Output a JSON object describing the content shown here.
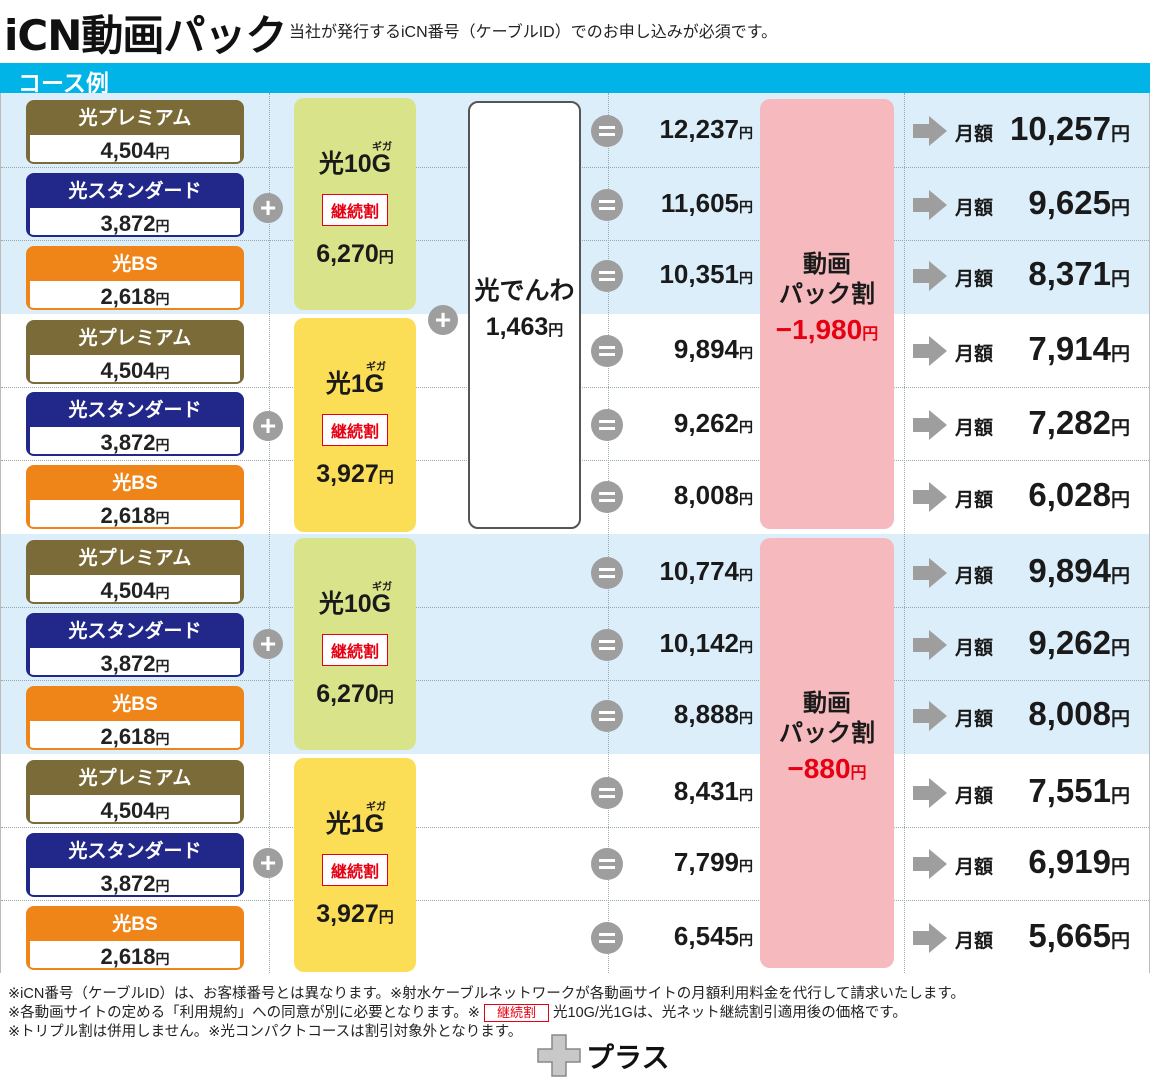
{
  "header": {
    "title": "iCN動画パック",
    "subtitle": "当社が発行するiCN番号（ケーブルID）でのお申し込みが必須です。"
  },
  "section_label": "コース例",
  "currency": "円",
  "services": {
    "premium": {
      "name": "光プレミアム",
      "price": "4,504"
    },
    "standard": {
      "name": "光スタンダード",
      "price": "3,872"
    },
    "bs": {
      "name": "光BS",
      "price": "2,618"
    }
  },
  "internet": {
    "g10": {
      "name": "光10G",
      "ruby": "ギガ",
      "badge": "継続割",
      "price": "6,270"
    },
    "g1": {
      "name": "光1G",
      "ruby": "ギガ",
      "badge": "継続割",
      "price": "3,927"
    }
  },
  "phone": {
    "name": "光でんわ",
    "price": "1,463"
  },
  "packs": [
    {
      "line1": "動画",
      "line2": "パック割",
      "discount": "−1,980"
    },
    {
      "line1": "動画",
      "line2": "パック割",
      "discount": "−880"
    }
  ],
  "monthly_label": "月額",
  "rows": [
    {
      "subtotal": "12,237",
      "monthly": "10,257"
    },
    {
      "subtotal": "11,605",
      "monthly": "9,625"
    },
    {
      "subtotal": "10,351",
      "monthly": "8,371"
    },
    {
      "subtotal": "9,894",
      "monthly": "7,914"
    },
    {
      "subtotal": "9,262",
      "monthly": "7,282"
    },
    {
      "subtotal": "8,008",
      "monthly": "6,028"
    },
    {
      "subtotal": "10,774",
      "monthly": "9,894"
    },
    {
      "subtotal": "10,142",
      "monthly": "9,262"
    },
    {
      "subtotal": "8,888",
      "monthly": "8,008"
    },
    {
      "subtotal": "8,431",
      "monthly": "7,551"
    },
    {
      "subtotal": "7,799",
      "monthly": "6,919"
    },
    {
      "subtotal": "6,545",
      "monthly": "5,665"
    }
  ],
  "notes": {
    "line1": "※iCN番号（ケーブルID）は、お客様番号とは異なります。※射水ケーブルネットワークが各動画サイトの月額利用料金を代行して請求いたします。",
    "line2a": "※各動画サイトの定める「利用規約」への同意が別に必要となります。※",
    "line2_badge": "継続割",
    "line2b": "光10G/光1Gは、光ネット継続割引適用後の価格です。",
    "line3": "※トリプル割は併用しません。※光コンパクトコースは割引対象外となります。"
  },
  "footer": {
    "brand": "プラス"
  },
  "colors": {
    "accent_blue": "#00b4e8",
    "premium": "#7a6b38",
    "standard": "#222889",
    "bs": "#ef8418",
    "g10": "#d9e48a",
    "g1": "#fbde55",
    "pack": "#f5b9be",
    "discount_red": "#e60012"
  }
}
